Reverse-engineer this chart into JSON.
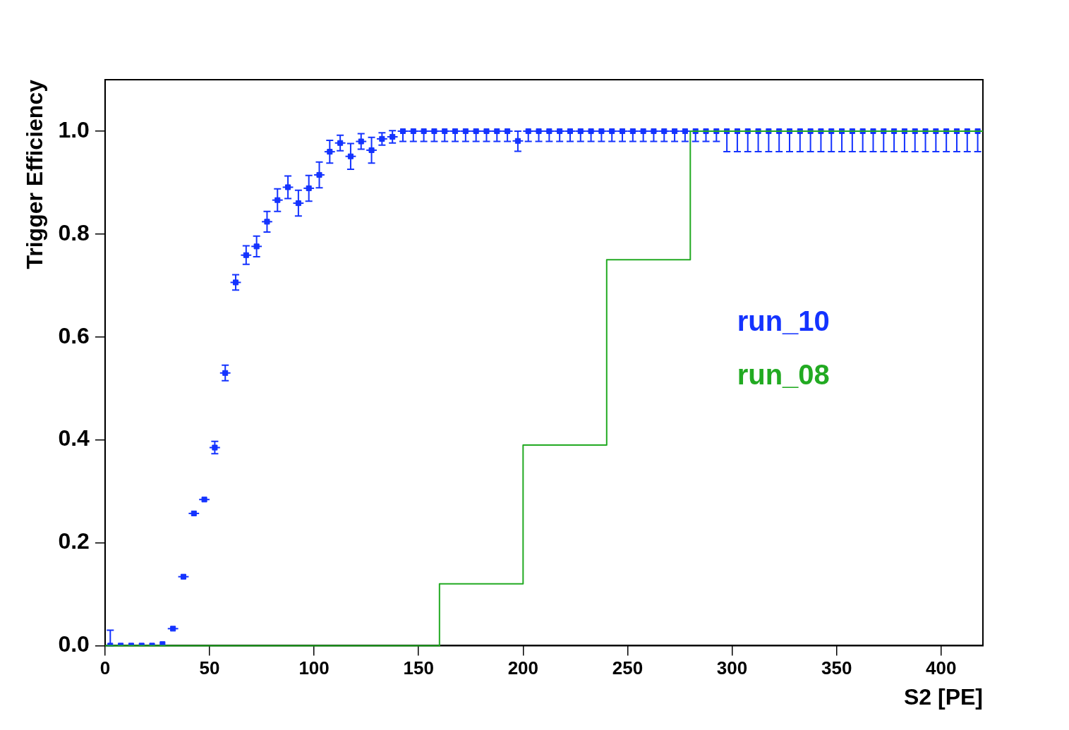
{
  "chart_data": {
    "type": "scatter",
    "xlabel": "S2 [PE]",
    "ylabel": "Trigger Efficiency",
    "xlim": [
      0,
      420
    ],
    "xticks": [
      0,
      50,
      100,
      150,
      200,
      250,
      300,
      350,
      400
    ],
    "ylim": [
      0,
      1.1
    ],
    "yticks": [
      {
        "value": 0,
        "label": "0.0"
      },
      {
        "value": 0.2,
        "label": "0.2"
      },
      {
        "value": 0.4,
        "label": "0.4"
      },
      {
        "value": 0.6,
        "label": "0.6"
      },
      {
        "value": 0.8,
        "label": "0.8"
      },
      {
        "value": 1,
        "label": "1.0"
      }
    ],
    "grid": false,
    "legend": "right",
    "series": [
      {
        "name": "run_10",
        "color": "#1433ff",
        "marker": "square",
        "x": [
          2.5,
          7.5,
          12.5,
          17.5,
          22.5,
          27.5,
          32.5,
          37.5,
          42.5,
          47.5,
          52.5,
          57.5,
          62.5,
          67.5,
          72.5,
          77.5,
          82.5,
          87.5,
          92.5,
          97.5,
          102.5,
          107.5,
          112.5,
          117.5,
          122.5,
          127.5,
          132.5,
          137.5,
          142.5,
          147.5,
          152.5,
          157.5,
          162.5,
          167.5,
          172.5,
          177.5,
          182.5,
          187.5,
          192.5,
          197.5,
          202.5,
          207.5,
          212.5,
          217.5,
          222.5,
          227.5,
          232.5,
          237.5,
          242.5,
          247.5,
          252.5,
          257.5,
          262.5,
          267.5,
          272.5,
          277.5,
          282.5,
          287.5,
          292.5,
          297.5,
          302.5,
          307.5,
          312.5,
          317.5,
          322.5,
          327.5,
          332.5,
          337.5,
          342.5,
          347.5,
          352.5,
          357.5,
          362.5,
          367.5,
          372.5,
          377.5,
          382.5,
          387.5,
          392.5,
          397.5,
          402.5,
          407.5,
          412.5,
          417.5
        ],
        "values": [
          0,
          0,
          0,
          0,
          0,
          0.003,
          0.033,
          0.134,
          0.257,
          0.284,
          0.385,
          0.53,
          0.706,
          0.759,
          0.776,
          0.824,
          0.866,
          0.891,
          0.86,
          0.889,
          0.915,
          0.96,
          0.977,
          0.951,
          0.98,
          0.963,
          0.985,
          0.989,
          1,
          1,
          1,
          1,
          1,
          1,
          1,
          1,
          1,
          1,
          1,
          0.981,
          1,
          1,
          1,
          1,
          1,
          1,
          1,
          1,
          1,
          1,
          1,
          1,
          1,
          1,
          1,
          1,
          1,
          1,
          1,
          1,
          1,
          1,
          1,
          1,
          1,
          1,
          1,
          1,
          1,
          1,
          1,
          1,
          1,
          1,
          1,
          1,
          1,
          1,
          1,
          1,
          1,
          1,
          1,
          1
        ],
        "errors": [
          [
            0,
            0.03
          ],
          null,
          null,
          null,
          null,
          null,
          null,
          null,
          null,
          null,
          0.012,
          0.015,
          0.015,
          0.018,
          0.02,
          0.02,
          0.022,
          0.022,
          0.025,
          0.025,
          0.025,
          0.022,
          0.015,
          0.025,
          0.015,
          0.025,
          0.012,
          0.012,
          [
            0.98,
            1
          ],
          [
            0.98,
            1
          ],
          [
            0.98,
            1
          ],
          [
            0.98,
            1
          ],
          [
            0.98,
            1
          ],
          [
            0.98,
            1
          ],
          [
            0.98,
            1
          ],
          [
            0.98,
            1
          ],
          [
            0.98,
            1
          ],
          [
            0.98,
            1
          ],
          [
            0.98,
            1
          ],
          [
            0.961,
            1
          ],
          [
            0.98,
            1
          ],
          [
            0.98,
            1
          ],
          [
            0.98,
            1
          ],
          [
            0.98,
            1
          ],
          [
            0.98,
            1
          ],
          [
            0.98,
            1
          ],
          [
            0.98,
            1
          ],
          [
            0.98,
            1
          ],
          [
            0.98,
            1
          ],
          [
            0.98,
            1
          ],
          [
            0.98,
            1
          ],
          [
            0.98,
            1
          ],
          [
            0.98,
            1
          ],
          [
            0.98,
            1
          ],
          [
            0.98,
            1
          ],
          [
            0.98,
            1
          ],
          [
            0.98,
            1
          ],
          [
            0.98,
            1
          ],
          [
            0.98,
            1
          ],
          [
            0.96,
            1
          ],
          [
            0.96,
            1
          ],
          [
            0.96,
            1
          ],
          [
            0.96,
            1
          ],
          [
            0.96,
            1
          ],
          [
            0.96,
            1
          ],
          [
            0.96,
            1
          ],
          [
            0.96,
            1
          ],
          [
            0.96,
            1
          ],
          [
            0.96,
            1
          ],
          [
            0.96,
            1
          ],
          [
            0.96,
            1
          ],
          [
            0.96,
            1
          ],
          [
            0.96,
            1
          ],
          [
            0.96,
            1
          ],
          [
            0.96,
            1
          ],
          [
            0.96,
            1
          ],
          [
            0.96,
            1
          ],
          [
            0.96,
            1
          ],
          [
            0.96,
            1
          ],
          [
            0.96,
            1
          ],
          [
            0.96,
            1
          ],
          [
            0.96,
            1
          ],
          [
            0.96,
            1
          ],
          [
            0.96,
            1
          ]
        ],
        "xerrors": [
          null,
          null,
          null,
          null,
          null,
          null,
          2.5,
          2.5,
          2.5,
          2.5,
          2.5,
          2.5,
          2.5,
          2.5,
          2.5,
          2.5,
          2.5,
          2.5,
          2.5,
          2.5,
          2.5,
          2.5,
          2.5,
          2.5,
          2.5,
          2.5,
          2.5,
          2.5,
          2.5,
          2.5,
          2.5,
          2.5,
          2.5,
          2.5,
          2.5,
          2.5,
          2.5,
          2.5,
          2.5,
          2.5,
          2.5,
          2.5,
          2.5,
          2.5,
          2.5,
          2.5,
          2.5,
          2.5,
          2.5,
          2.5,
          2.5,
          2.5,
          2.5,
          2.5,
          2.5,
          2.5,
          2.5,
          2.5,
          2.5,
          2.5,
          2.5,
          2.5,
          2.5,
          2.5,
          2.5,
          2.5,
          2.5,
          2.5,
          2.5,
          2.5,
          2.5,
          2.5,
          2.5,
          2.5,
          2.5,
          2.5,
          2.5,
          2.5,
          2.5,
          2.5,
          2.5,
          2.5,
          2.5,
          2.5
        ]
      },
      {
        "name": "run_08",
        "color": "#22aa22",
        "type": "step",
        "x": [
          0,
          160,
          200,
          240,
          280,
          420
        ],
        "values": [
          0,
          0.12,
          0.39,
          0.75,
          1,
          1
        ]
      }
    ]
  }
}
